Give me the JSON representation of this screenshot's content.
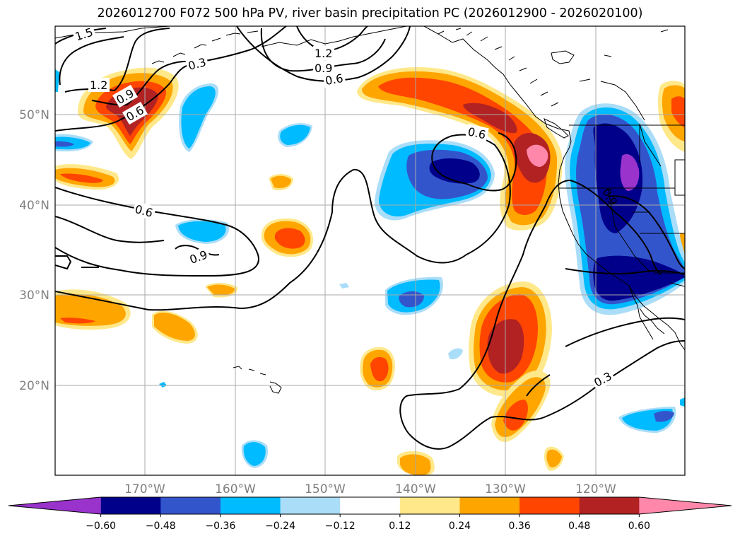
{
  "title": "2026012700 F072 500 hPa PV, river basin precipitation PC (2026012900 - 2026020100)",
  "lat_labels": [
    "50°N",
    "40°N",
    "30°N",
    "20°N"
  ],
  "lon_labels": [
    "170°W",
    "160°W",
    "150°W",
    "140°W",
    "130°W",
    "120°W"
  ],
  "contour_labels": [
    "1.5",
    "1.2",
    "0.9",
    "0.6",
    "0.3",
    "1.2",
    "0.9",
    "0.6",
    "0.6",
    "0.6",
    "0.9",
    "0.3",
    "0.9"
  ],
  "colorbar": {
    "ticks": [
      "−0.60",
      "−0.48",
      "−0.36",
      "−0.24",
      "−0.12",
      "0.12",
      "0.24",
      "0.36",
      "0.48",
      "0.60"
    ],
    "colors": [
      "#9933cc",
      "#00008b",
      "#3355cc",
      "#00bbff",
      "#aaddf8",
      "#ffffff",
      "#ffe88a",
      "#ffa500",
      "#ff4500",
      "#b22222",
      "#ff88aa",
      "#ff88aa"
    ],
    "extend": "both"
  },
  "colors": {
    "neg_060": "#9933cc",
    "neg_048": "#00008b",
    "neg_036": "#3355cc",
    "neg_024": "#00bbff",
    "neg_012": "#aaddf8",
    "pos_012": "#ffe88a",
    "pos_024": "#ffa500",
    "pos_036": "#ff4500",
    "pos_048": "#b22222",
    "pos_060": "#ff88aa"
  }
}
